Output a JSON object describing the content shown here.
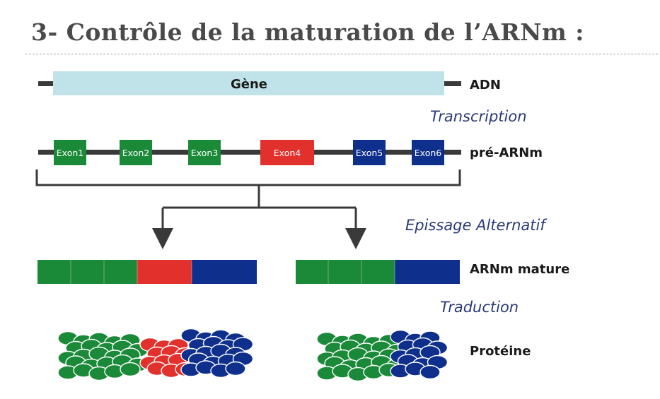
{
  "title": "3- Contrôle de la maturation de l’ARNm :",
  "colors": {
    "title": "#4a4a4a",
    "gene_fill": "#bfe3e8",
    "line": "#3a3a3a",
    "green": "#1a8a38",
    "red": "#e2302c",
    "blue": "#0f2f8c",
    "step_text": "#2b3a78"
  },
  "dna": {
    "gene_label": "Gène",
    "side_label": "ADN"
  },
  "steps": {
    "transcription": "Transcription",
    "splicing": "Epissage Alternatif",
    "translation": "Traduction"
  },
  "pre_mrna": {
    "side_label": "pré-ARNm",
    "exons": [
      {
        "label": "Exon1",
        "color": "green"
      },
      {
        "label": "Exon2",
        "color": "green"
      },
      {
        "label": "Exon3",
        "color": "green"
      },
      {
        "label": "Exon4",
        "color": "red"
      },
      {
        "label": "Exon5",
        "color": "blue"
      },
      {
        "label": "Exon6",
        "color": "blue"
      }
    ]
  },
  "mature_mrna": {
    "side_label": "ARNm mature",
    "variants": [
      {
        "segments": [
          "green",
          "green",
          "green",
          "red",
          "blue"
        ]
      },
      {
        "segments": [
          "green",
          "green",
          "green",
          "blue"
        ]
      }
    ]
  },
  "protein": {
    "side_label": "Protéine"
  }
}
